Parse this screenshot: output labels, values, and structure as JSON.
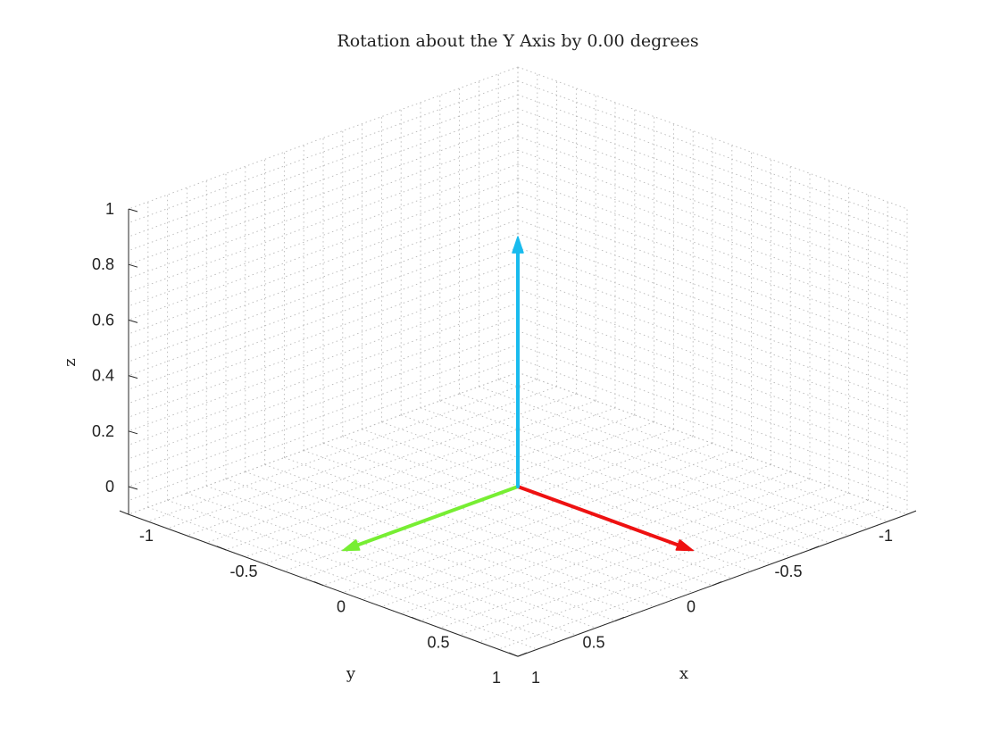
{
  "chart_data": {
    "type": "line",
    "title": "Rotation about the Y Axis by 0.00 degrees",
    "xlabel": "x",
    "ylabel": "y",
    "zlabel": "z",
    "xlim": [
      -1,
      1
    ],
    "ylim": [
      -1,
      1
    ],
    "zlim": [
      -0.1,
      1
    ],
    "xticks": [
      -1,
      -0.5,
      0,
      0.5,
      1
    ],
    "yticks": [
      -1,
      -0.5,
      0,
      0.5,
      1
    ],
    "zticks": [
      0,
      0.2,
      0.4,
      0.6,
      0.8,
      1
    ],
    "xtick_labels": [
      "-1",
      "-0.5",
      "0",
      "0.5",
      "1"
    ],
    "ytick_labels": [
      "-1",
      "-0.5",
      "0",
      "0.5",
      "1"
    ],
    "ztick_labels": [
      "0",
      "0.2",
      "0.4",
      "0.6",
      "0.8",
      "1"
    ],
    "grid": true,
    "grid_style": "dotted minor + major",
    "view": "3d isometric (az -45, el 35)",
    "vectors": [
      {
        "axis": "x",
        "from": [
          0,
          0,
          0
        ],
        "to": [
          0.9,
          0,
          0
        ],
        "color": "#ee1111"
      },
      {
        "axis": "y",
        "from": [
          0,
          0,
          0
        ],
        "to": [
          0,
          0.9,
          0
        ],
        "color": "#77ee33"
      },
      {
        "axis": "z",
        "from": [
          0,
          0,
          0
        ],
        "to": [
          0,
          0,
          0.9
        ],
        "color": "#19bbee"
      }
    ]
  }
}
